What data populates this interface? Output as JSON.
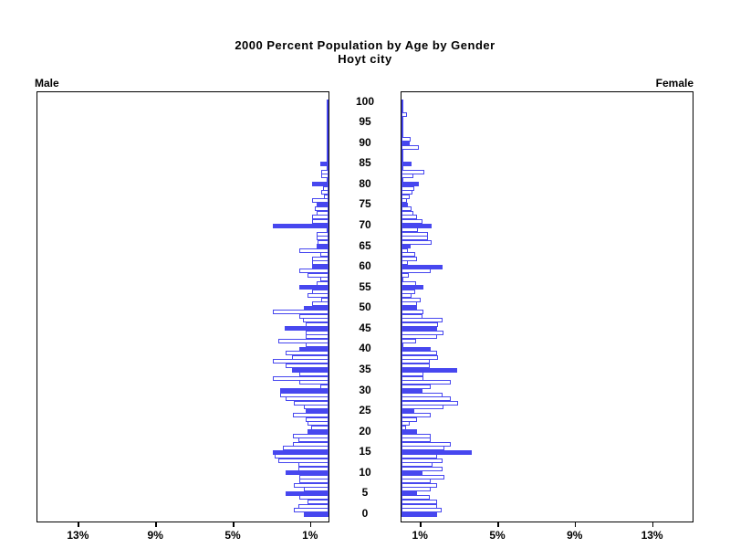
{
  "title": {
    "line1": "2000 Percent Population by Age by Gender",
    "line2": "Hoyt city"
  },
  "panel_labels": {
    "left": "Male",
    "right": "Female"
  },
  "colors": {
    "bar_blue": "#4747ef",
    "frame": "#000000",
    "background": "#ffffff"
  },
  "chart_data": {
    "type": "bar",
    "subtype": "population-pyramid",
    "orientation": "horizontal",
    "title": "2000 Percent Population by Age by Gender",
    "subtitle": "Hoyt city",
    "age_axis": {
      "min": 0,
      "max": 100,
      "label_step": 5,
      "labels": [
        "0",
        "5",
        "10",
        "15",
        "20",
        "25",
        "30",
        "35",
        "40",
        "45",
        "50",
        "55",
        "60",
        "65",
        "70",
        "75",
        "80",
        "85",
        "90",
        "95",
        "100"
      ]
    },
    "x_axis": {
      "unit": "percent",
      "tick_values": [
        1,
        5,
        9,
        13
      ],
      "male_tick_labels": [
        "13%",
        "9%",
        "5%",
        "1%"
      ],
      "female_tick_labels": [
        "1%",
        "5%",
        "9%",
        "13%"
      ],
      "range_max": 15.1,
      "zero_at_center": true
    },
    "bar_style": {
      "solid_fill_at_ages_divisible_by": 5,
      "other_ages": "white fill with blue outline"
    },
    "series": [
      {
        "name": "Male",
        "direction": "left",
        "values_pct_by_age_0_to_100": [
          1.26,
          1.8,
          1.57,
          1.1,
          1.49,
          2.23,
          1.26,
          1.8,
          1.49,
          1.49,
          2.23,
          1.57,
          1.57,
          2.6,
          2.8,
          2.89,
          2.36,
          1.84,
          1.57,
          1.84,
          1.1,
          0.9,
          1.1,
          1.18,
          1.84,
          1.18,
          1.26,
          1.8,
          2.23,
          2.52,
          2.52,
          0.42,
          1.49,
          2.86,
          1.49,
          1.89,
          2.23,
          2.86,
          1.89,
          2.23,
          1.53,
          1.18,
          2.6,
          1.18,
          1.18,
          2.28,
          1.2,
          1.3,
          1.5,
          2.86,
          1.26,
          0.85,
          0.4,
          1.1,
          0.86,
          1.49,
          0.63,
          0.42,
          1.1,
          1.49,
          0.86,
          0.86,
          0.86,
          0.42,
          1.49,
          0.63,
          0.55,
          0.63,
          0.63,
          0.1,
          2.88,
          0.86,
          0.86,
          0.63,
          0.71,
          0.6,
          0.86,
          0.25,
          0.38,
          0.28,
          0.85,
          0.05,
          0.38,
          0.38,
          0.05,
          0.42,
          0.0,
          0.0,
          0.0,
          0.0,
          0.0,
          0.0,
          0.0,
          0.0,
          0.0,
          0.0,
          0.0,
          0.0,
          0.0,
          0.0,
          0.0
        ]
      },
      {
        "name": "Female",
        "direction": "right",
        "values_pct_by_age_0_to_100": [
          1.82,
          2.06,
          1.82,
          1.82,
          1.45,
          0.8,
          1.5,
          1.82,
          1.5,
          2.2,
          1.07,
          2.14,
          1.6,
          2.14,
          1.82,
          3.63,
          2.2,
          2.53,
          1.5,
          1.5,
          0.8,
          0.25,
          0.44,
          0.8,
          1.5,
          0.66,
          2.16,
          2.92,
          2.53,
          2.14,
          1.07,
          1.5,
          2.53,
          1.12,
          1.12,
          2.88,
          1.48,
          1.48,
          1.9,
          1.82,
          1.5,
          0.1,
          0.75,
          1.82,
          2.19,
          1.86,
          1.9,
          2.14,
          1.07,
          1.12,
          0.8,
          0.8,
          1.0,
          0.52,
          0.7,
          1.12,
          0.75,
          0.1,
          0.36,
          1.5,
          2.14,
          0.33,
          0.8,
          0.7,
          0.33,
          0.47,
          1.54,
          1.35,
          1.35,
          0.85,
          1.54,
          1.1,
          0.8,
          0.6,
          0.52,
          0.35,
          0.3,
          0.44,
          0.57,
          0.66,
          0.88,
          0.1,
          0.6,
          1.16,
          0.05,
          0.52,
          0.0,
          0.0,
          0.0,
          0.89,
          0.44,
          0.49,
          0.0,
          0.0,
          0.0,
          0.0,
          0.0,
          0.3,
          0.0,
          0.0,
          0.0
        ]
      }
    ]
  }
}
